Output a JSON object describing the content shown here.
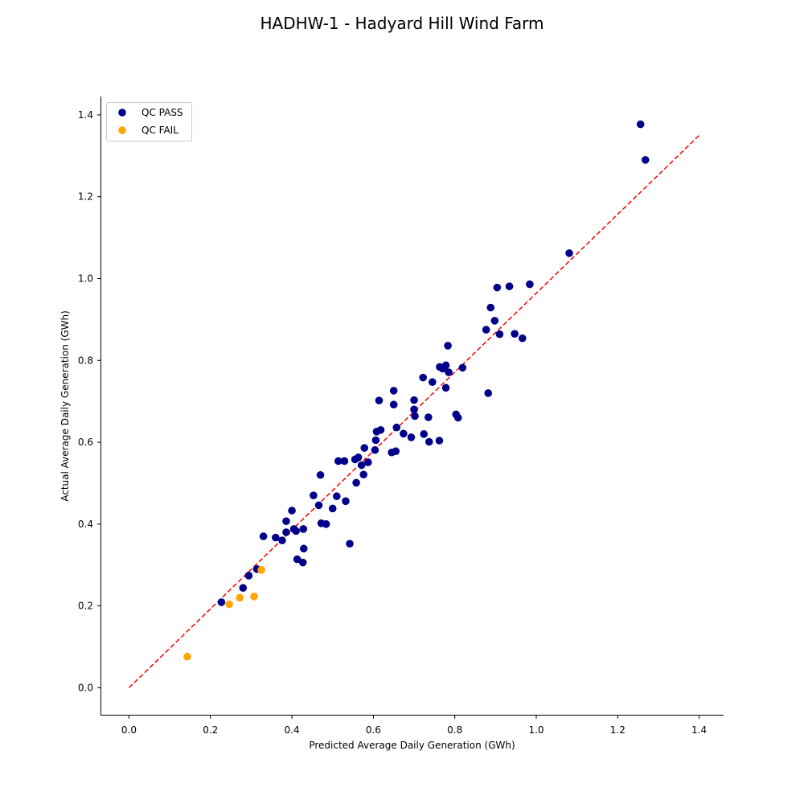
{
  "chart_data": {
    "type": "scatter",
    "title": "HADHW-1 - Hadyard Hill Wind Farm",
    "xlabel": "Predicted Average Daily Generation (GWh)",
    "ylabel": "Actual Average Daily Generation (GWh)",
    "xlim": [
      -0.07,
      1.46
    ],
    "ylim": [
      -0.068,
      1.445
    ],
    "xticks": [
      "0.0",
      "0.2",
      "0.4",
      "0.6",
      "0.8",
      "1.0",
      "1.2",
      "1.4"
    ],
    "yticks": [
      "0.0",
      "0.2",
      "0.4",
      "0.6",
      "0.8",
      "1.0",
      "1.2",
      "1.4"
    ],
    "grid": false,
    "legend_position": "top-left",
    "reference_line": {
      "style": "dashed",
      "color": "#ff0000",
      "x": [
        0.0,
        1.4
      ],
      "y": [
        0.0,
        1.35
      ]
    },
    "series": [
      {
        "name": "QC PASS",
        "color": "#00008b",
        "points": [
          [
            0.227,
            0.209
          ],
          [
            0.28,
            0.244
          ],
          [
            0.294,
            0.274
          ],
          [
            0.314,
            0.29
          ],
          [
            0.33,
            0.37
          ],
          [
            0.36,
            0.367
          ],
          [
            0.376,
            0.36
          ],
          [
            0.386,
            0.38
          ],
          [
            0.386,
            0.407
          ],
          [
            0.4,
            0.433
          ],
          [
            0.405,
            0.388
          ],
          [
            0.41,
            0.383
          ],
          [
            0.413,
            0.314
          ],
          [
            0.427,
            0.306
          ],
          [
            0.428,
            0.388
          ],
          [
            0.429,
            0.34
          ],
          [
            0.453,
            0.47
          ],
          [
            0.466,
            0.446
          ],
          [
            0.47,
            0.52
          ],
          [
            0.472,
            0.402
          ],
          [
            0.484,
            0.4
          ],
          [
            0.5,
            0.438
          ],
          [
            0.51,
            0.468
          ],
          [
            0.514,
            0.554
          ],
          [
            0.529,
            0.554
          ],
          [
            0.532,
            0.456
          ],
          [
            0.542,
            0.352
          ],
          [
            0.555,
            0.558
          ],
          [
            0.558,
            0.501
          ],
          [
            0.563,
            0.563
          ],
          [
            0.571,
            0.544
          ],
          [
            0.576,
            0.521
          ],
          [
            0.578,
            0.586
          ],
          [
            0.587,
            0.551
          ],
          [
            0.604,
            0.581
          ],
          [
            0.606,
            0.605
          ],
          [
            0.608,
            0.626
          ],
          [
            0.614,
            0.702
          ],
          [
            0.618,
            0.63
          ],
          [
            0.645,
            0.575
          ],
          [
            0.65,
            0.726
          ],
          [
            0.65,
            0.692
          ],
          [
            0.655,
            0.578
          ],
          [
            0.657,
            0.636
          ],
          [
            0.674,
            0.621
          ],
          [
            0.693,
            0.612
          ],
          [
            0.7,
            0.703
          ],
          [
            0.7,
            0.68
          ],
          [
            0.702,
            0.664
          ],
          [
            0.722,
            0.758
          ],
          [
            0.724,
            0.62
          ],
          [
            0.735,
            0.661
          ],
          [
            0.737,
            0.601
          ],
          [
            0.745,
            0.747
          ],
          [
            0.762,
            0.604
          ],
          [
            0.763,
            0.784
          ],
          [
            0.77,
            0.78
          ],
          [
            0.778,
            0.788
          ],
          [
            0.778,
            0.733
          ],
          [
            0.783,
            0.836
          ],
          [
            0.785,
            0.771
          ],
          [
            0.803,
            0.668
          ],
          [
            0.808,
            0.66
          ],
          [
            0.819,
            0.782
          ],
          [
            0.877,
            0.875
          ],
          [
            0.882,
            0.72
          ],
          [
            0.888,
            0.929
          ],
          [
            0.898,
            0.897
          ],
          [
            0.904,
            0.978
          ],
          [
            0.91,
            0.864
          ],
          [
            0.934,
            0.981
          ],
          [
            0.947,
            0.865
          ],
          [
            0.966,
            0.854
          ],
          [
            0.984,
            0.986
          ],
          [
            1.081,
            1.062
          ],
          [
            1.256,
            1.377
          ],
          [
            1.268,
            1.29
          ]
        ]
      },
      {
        "name": "QC FAIL",
        "color": "#ffa500",
        "points": [
          [
            0.143,
            0.076
          ],
          [
            0.246,
            0.204
          ],
          [
            0.272,
            0.22
          ],
          [
            0.307,
            0.223
          ],
          [
            0.325,
            0.288
          ]
        ]
      }
    ]
  }
}
